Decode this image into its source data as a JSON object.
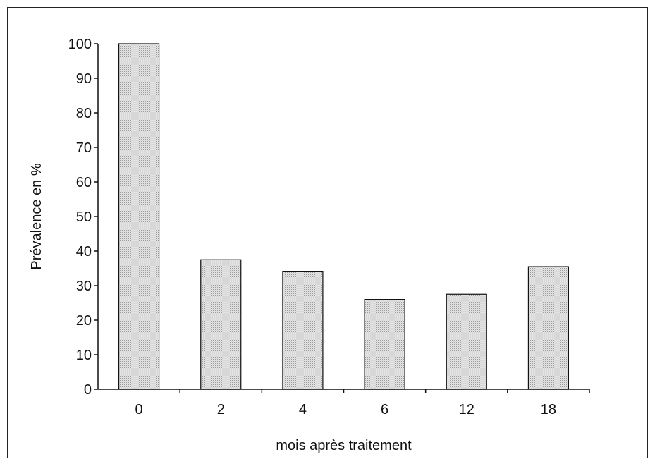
{
  "chart_data": {
    "type": "bar",
    "categories": [
      "0",
      "2",
      "4",
      "6",
      "12",
      "18"
    ],
    "values": [
      100,
      37.5,
      34,
      26,
      27.5,
      35.5
    ],
    "title": "",
    "xlabel": "mois après traitement",
    "ylabel": "Prévalence en %",
    "ylim": [
      0,
      100
    ],
    "yticks": [
      0,
      10,
      20,
      30,
      40,
      50,
      60,
      70,
      80,
      90,
      100
    ],
    "grid": false,
    "bar_fill": "#dcdcdc",
    "bar_stroke": "#111111"
  }
}
